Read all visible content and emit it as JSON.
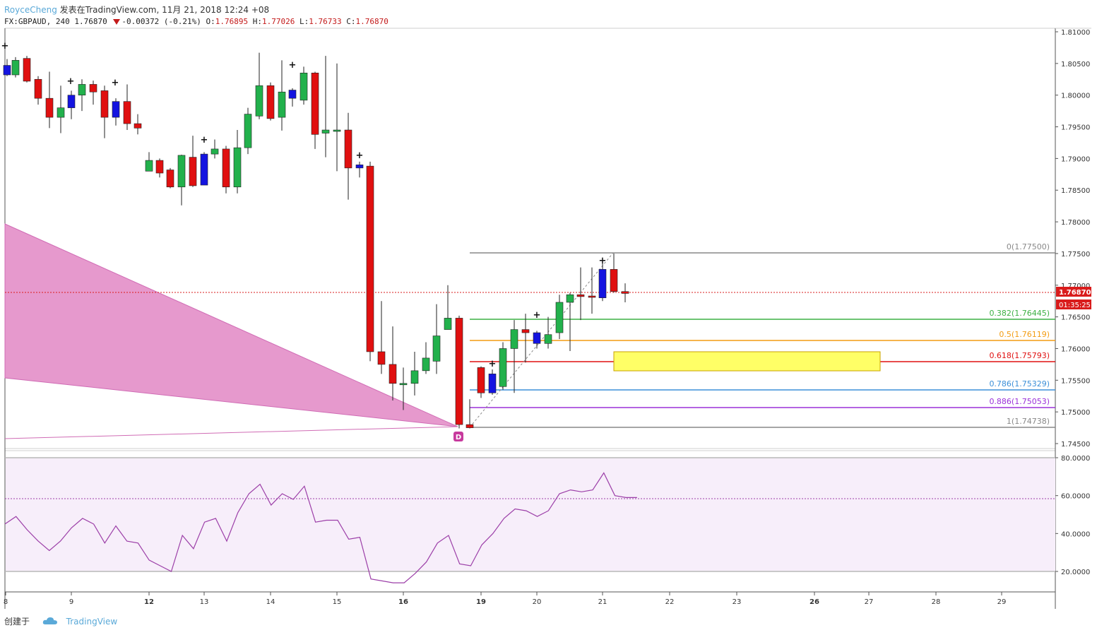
{
  "header": {
    "author": "RoyceCheng",
    "published": "发表在TradingView.com, 11月 21, 2018 12:24 +08",
    "symbol": "FX:GBPAUD, 240",
    "last": "1.76870",
    "change": "-0.00372 (-0.21%)",
    "o_label": "O:",
    "o_value": "1.76895",
    "h_label": "H:",
    "h_value": "1.77026",
    "l_label": "L:",
    "l_value": "1.76733",
    "c_label": "C:",
    "c_value": "1.76870"
  },
  "price_axis": {
    "ticks": [
      "1.81000",
      "1.80500",
      "1.80000",
      "1.79500",
      "1.79000",
      "1.78500",
      "1.78000",
      "1.77500",
      "1.77000",
      "1.76500",
      "1.76000",
      "1.75500",
      "1.75000",
      "1.74500"
    ],
    "current_price": "1.76870",
    "countdown": "01:35:25"
  },
  "rsi_axis": {
    "ticks": [
      "80.0000",
      "60.0000",
      "40.0000",
      "20.0000"
    ]
  },
  "time_axis": {
    "labels": [
      "8",
      "9",
      "12",
      "13",
      "14",
      "15",
      "16",
      "19",
      "20",
      "21",
      "22",
      "23",
      "26",
      "27",
      "28",
      "29"
    ]
  },
  "fib_levels": [
    {
      "label": "0(1.77500)",
      "color": "#888888"
    },
    {
      "label": "0.382(1.76445)",
      "color": "#3cb043"
    },
    {
      "label": "0.5(1.76119)",
      "color": "#f39c12"
    },
    {
      "label": "0.618(1.75793)",
      "color": "#e01010"
    },
    {
      "label": "0.786(1.75329)",
      "color": "#3b8fd8"
    },
    {
      "label": "0.886(1.75053)",
      "color": "#9b30d9"
    },
    {
      "label": "1(1.74738)",
      "color": "#888888"
    }
  ],
  "pattern_point": "D",
  "colors": {
    "bull": "#22b14c",
    "bear": "#e01010",
    "neutral": "#1414e0",
    "pattern": "#e38ec8",
    "rsi_line": "#9c3fa8",
    "rsi_band": "#f7eefa",
    "current_price_tag": "#d91c1c",
    "zone": "#ffff66"
  },
  "footer": {
    "created": "创建于",
    "brand": "TradingView"
  }
}
